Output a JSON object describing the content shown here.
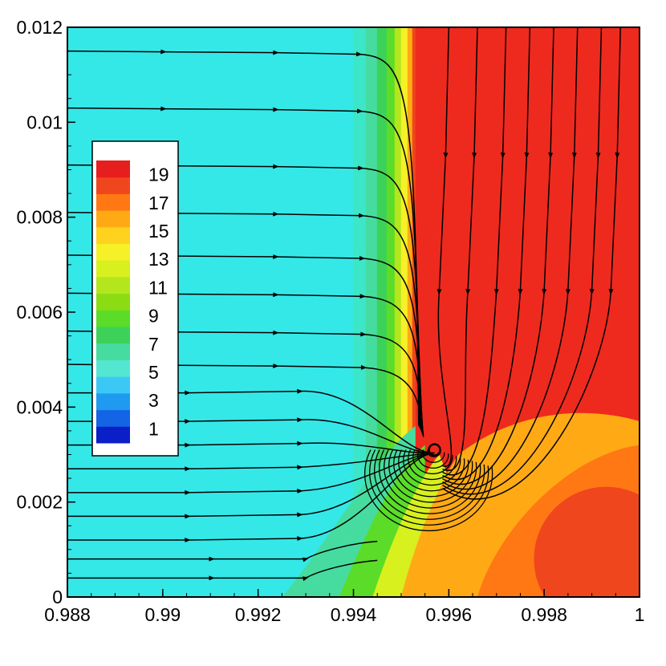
{
  "chart_data": {
    "type": "heatmap",
    "title": "",
    "xlabel": "",
    "ylabel": "",
    "xlim": [
      0.988,
      1.0
    ],
    "ylim": [
      0,
      0.012
    ],
    "x_ticks": [
      0.988,
      0.99,
      0.992,
      0.994,
      0.996,
      0.998,
      1.0
    ],
    "x_tick_labels": [
      "0.988",
      "0.99",
      "0.992",
      "0.994",
      "0.996",
      "0.998",
      "1"
    ],
    "y_ticks": [
      0,
      0.002,
      0.004,
      0.006,
      0.008,
      0.01,
      0.012
    ],
    "y_tick_labels": [
      "0",
      "0.002",
      "0.004",
      "0.006",
      "0.008",
      "0.01",
      "0.012"
    ],
    "grid": false,
    "legend": {
      "placement": "left",
      "levels": [
        1,
        3,
        5,
        7,
        9,
        11,
        13,
        15,
        17,
        19
      ],
      "labels": [
        "1",
        "3",
        "5",
        "7",
        "9",
        "11",
        "13",
        "15",
        "17",
        "19"
      ],
      "colors": [
        "#0a1fc8",
        "#1464e6",
        "#1e9bf0",
        "#3cc8f5",
        "#55e6d2",
        "#46dca0",
        "#3cd25a",
        "#5adc28",
        "#8cdc14",
        "#b4e61e",
        "#d7f01e",
        "#f5f028",
        "#ffd21e",
        "#ffaa14",
        "#ff7814",
        "#f0461e",
        "#e61e1e"
      ]
    },
    "field": {
      "background_value": 6,
      "front_x": 0.9953,
      "hot_value": 19,
      "vortex_center": [
        0.9957,
        0.0031
      ]
    },
    "streamlines": {
      "description_values": "horizontal streamlines at y levels entering from left, turning into vortex near front",
      "left_y_levels": [
        0.0115,
        0.0103,
        0.0091,
        0.0081,
        0.0072,
        0.0064,
        0.0056,
        0.0049,
        0.0043,
        0.0037,
        0.0032,
        0.0027,
        0.0022,
        0.0017,
        0.0012,
        0.0008,
        0.0004
      ],
      "right_x_levels": [
        0.996,
        0.9966,
        0.9972,
        0.9977,
        0.9982,
        0.9987,
        0.9992,
        0.9996
      ]
    }
  }
}
